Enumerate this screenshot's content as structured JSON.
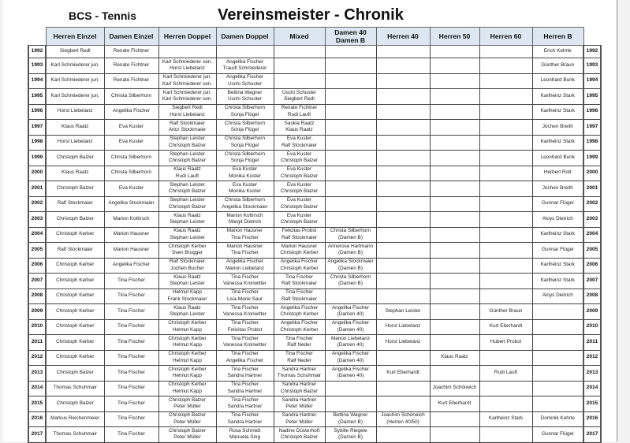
{
  "header": {
    "club": "BCS - Tennis",
    "title": "Vereinsmeister - Chronik"
  },
  "columns": [
    "Herren Einzel",
    "Damen Einzel",
    "Herren Doppel",
    "Damen Doppel",
    "Mixed",
    [
      "Damen 40",
      "Damen B"
    ],
    "Herren 40",
    "Herren 50",
    "Herren 60",
    "Herren B"
  ],
  "rows": [
    {
      "year": "1992",
      "cells": [
        [
          "Siegbert Redl"
        ],
        [
          "Renate Fichtner"
        ],
        [],
        [],
        [],
        [],
        [],
        [],
        [],
        [
          "Erich Kehrle"
        ]
      ]
    },
    {
      "year": "1993",
      "cells": [
        [
          "Karl Schmiederer jun."
        ],
        [
          "Renate Fichtner"
        ],
        [
          "Karl Schmiederer sen.",
          "Horst Liebetanz"
        ],
        [
          "Angelika Fischer",
          "Traudl Schmiederer"
        ],
        [],
        [],
        [],
        [],
        [],
        [
          "Günther Braun"
        ]
      ]
    },
    {
      "year": "1994",
      "cells": [
        [
          "Karl Schmiederer jun."
        ],
        [
          "Renate Fichtner"
        ],
        [
          "Karl Schmiederer jun.",
          "Karl Schmiederer sen."
        ],
        [
          "Angelika Fischer",
          "Uschi Schuster"
        ],
        [],
        [],
        [],
        [],
        [],
        [
          "Leonhard Bunk"
        ]
      ]
    },
    {
      "year": "1995",
      "cells": [
        [
          "Karl Schmiederer jun."
        ],
        [
          "Christa Silberhorn"
        ],
        [
          "Karl Schmiederer jun.",
          "Karl Schmiederer sen."
        ],
        [
          "Bettina Wagner",
          "Uschi Schuster"
        ],
        [
          "Uschi Schuster",
          "Siegbert Redl"
        ],
        [],
        [],
        [],
        [],
        [
          "Karlheinz Stark"
        ]
      ]
    },
    {
      "year": "1996",
      "cells": [
        [
          "Horst Liebetanz"
        ],
        [
          "Angelika Fischer"
        ],
        [
          "Siegbert Redl",
          "Horst Liebetanz"
        ],
        [
          "Christa Silberhorn",
          "Sonja Flügel"
        ],
        [
          "Renate Fichtner",
          "Rudi Lauft"
        ],
        [],
        [],
        [],
        [],
        [
          "Karlheinz Stark"
        ]
      ]
    },
    {
      "year": "1997",
      "cells": [
        [
          "Klaus Raatz"
        ],
        [
          "Eva Kuster"
        ],
        [
          "Ralf Stockmaier",
          "Artur Stockmaier"
        ],
        [
          "Christa Silberhorn",
          "Sonja Flügel"
        ],
        [
          "Saskia Raatz",
          "Klaus Raatz"
        ],
        [],
        [],
        [],
        [],
        [
          "Jochen Breith"
        ]
      ]
    },
    {
      "year": "1998",
      "cells": [
        [
          "Horst Liebetanz"
        ],
        [
          "Eva Kuster"
        ],
        [
          "Stephan Leister",
          "Christoph Balzer"
        ],
        [
          "Christa Silberhorn",
          "Sonja Flügel"
        ],
        [
          "Eva Kuster",
          "Ralf Stockmaier"
        ],
        [],
        [],
        [],
        [],
        [
          "Karlheinz Stark"
        ]
      ]
    },
    {
      "year": "1999",
      "cells": [
        [
          "Christoph Balzer"
        ],
        [
          "Christa Silberhorn"
        ],
        [
          "Stephan Leister",
          "Christoph Balzer"
        ],
        [
          "Christa Silberhorn",
          "Sonja Flügel"
        ],
        [
          "Eva Kuster",
          "Christoph Balzer"
        ],
        [],
        [],
        [],
        [],
        [
          "Leonhard Bunk"
        ]
      ]
    },
    {
      "year": "2000",
      "cells": [
        [
          "Klaus Raatz"
        ],
        [
          "Christa Silberhorn"
        ],
        [
          "Klaus Raatz",
          "Rudi Lauft"
        ],
        [
          "Eva Kuster",
          "Monika Kuster"
        ],
        [
          "Eva Kuster",
          "Christoph Balzer"
        ],
        [],
        [],
        [],
        [],
        [
          "Herbert Rott"
        ]
      ]
    },
    {
      "year": "2001",
      "cells": [
        [
          "Christoph Balzer"
        ],
        [
          "Eva Kuster"
        ],
        [
          "Stephan Leister",
          "Christoph Balzer"
        ],
        [
          "Eva Kuster",
          "Monika Kuster"
        ],
        [
          "Eva Kuster",
          "Christoph Balzer"
        ],
        [],
        [],
        [],
        [],
        [
          "Jochen Breith"
        ]
      ]
    },
    {
      "year": "2002",
      "cells": [
        [
          "Ralf Stockmaier"
        ],
        [
          "Angelika Stockmaier"
        ],
        [
          "Stephan Leister",
          "Christoph Balzer"
        ],
        [
          "Christa Silberhorn",
          "Angelika Stockmaier"
        ],
        [
          "Eva Kuster",
          "Christoph Balzer"
        ],
        [],
        [],
        [],
        [],
        [
          "Gunnar Flügel"
        ]
      ]
    },
    {
      "year": "2003",
      "cells": [
        [
          "Christoph Balzer"
        ],
        [
          "Marion Kottirsch"
        ],
        [
          "Klaus Raatz",
          "Stephan Leister"
        ],
        [
          "Marion Kottirsch",
          "Margit Dietrich"
        ],
        [
          "Eva Kuster",
          "Christoph Balzer"
        ],
        [],
        [],
        [],
        [],
        [
          "Aloys Dietrich"
        ]
      ]
    },
    {
      "year": "2004",
      "cells": [
        [
          "Christoph Kerber"
        ],
        [
          "Marion Hausner"
        ],
        [
          "Klaus Raatz",
          "Stephan Leister"
        ],
        [
          "Marion Hausner",
          "Tina Fischer"
        ],
        [
          "Felicitas Probst",
          "Ralf Stockmaier"
        ],
        [
          "Christa Silberhorn",
          "(Damen B)"
        ],
        [],
        [],
        [],
        [
          "Karlheinz Stark"
        ]
      ]
    },
    {
      "year": "2005",
      "cells": [
        [
          "Ralf Stockmaier"
        ],
        [
          "Marion Hausner"
        ],
        [
          "Christoph Kerber",
          "Sven Brugger"
        ],
        [
          "Marion Hausner",
          "Tina Fischer"
        ],
        [
          "Marion Hausner",
          "Christoph Kerber"
        ],
        [
          "Annerose Hartmann",
          "(Damen B)"
        ],
        [],
        [],
        [],
        [
          "Gunnar Flügel"
        ]
      ]
    },
    {
      "year": "2006",
      "cells": [
        [
          "Christoph Kerber"
        ],
        [
          "Angelika Fischer"
        ],
        [
          "Ralf Stockmaier",
          "Jochen Bucher"
        ],
        [
          "Angelika Fischer",
          "Marion Liebetanz"
        ],
        [
          "Angelika Fischer",
          "Christoph Kerber"
        ],
        [
          "Angelika Stockmaier",
          "(Damen B)"
        ],
        [],
        [],
        [],
        [
          "Karlheinz Stark"
        ]
      ]
    },
    {
      "year": "2007",
      "cells": [
        [
          "Christoph Kerber"
        ],
        [
          "Tina Fischer"
        ],
        [
          "Klaus Raatz",
          "Stephan Leister"
        ],
        [
          "Tina Fischer",
          "Vanessa Kronwitter"
        ],
        [
          "Tina Fischer",
          "Ralf Stockmaier"
        ],
        [
          "Christa Silberhorn",
          "(Damen B)"
        ],
        [],
        [],
        [],
        [
          "Karlheinz Stark"
        ]
      ]
    },
    {
      "year": "2008",
      "cells": [
        [
          "Christoph Kerber"
        ],
        [
          "Tina Fischer"
        ],
        [
          "Helmut Kapp",
          "Frank Stockmaier"
        ],
        [
          "Tina Fischer",
          "Lisa-Marie Saur"
        ],
        [
          "Tina Fischer",
          "Ralf Stockmaier"
        ],
        [],
        [],
        [],
        [],
        [
          "Aloys Dietrich"
        ]
      ]
    },
    {
      "year": "2009",
      "cells": [
        [
          "Christoph Kerber"
        ],
        [
          "Tina Fischer"
        ],
        [
          "Klaus Raatz",
          "Stephan Leister"
        ],
        [
          "Tina Fischer",
          "Vanessa Kronwitter"
        ],
        [
          "Angelika Fischer",
          "Christoph Kerber"
        ],
        [
          "Angelika Fischer",
          "(Damen 40)"
        ],
        [
          "Stephan Leister"
        ],
        [],
        [
          "Günther Braun"
        ],
        []
      ]
    },
    {
      "year": "2010",
      "cells": [
        [
          "Christoph Kerber"
        ],
        [
          "Tina Fischer"
        ],
        [
          "Christoph Kerber",
          "Helmut Kapp"
        ],
        [
          "Tina Fischer",
          "Felicitas Probst"
        ],
        [
          "Angelika Fischer",
          "Christoph Kerber"
        ],
        [
          "Angelika Fischer",
          "(Damen 40)"
        ],
        [
          "Horst Liebetanz"
        ],
        [],
        [
          "Kurt Eberhardt"
        ],
        []
      ]
    },
    {
      "year": "2011",
      "cells": [
        [
          "Christoph Kerber"
        ],
        [
          "Tina Fischer"
        ],
        [
          "Christoph Kerber",
          "Helmut Kapp"
        ],
        [
          "Tina Fischer",
          "Vanessa Kronwitter"
        ],
        [
          "Tina Fischer",
          "Ralf Neder"
        ],
        [
          "Marion Liebetanz",
          "(Damen 40)"
        ],
        [
          "Horst Liebetanz"
        ],
        [],
        [
          "Hubert Probst"
        ],
        []
      ]
    },
    {
      "year": "2012",
      "cells": [
        [
          "Christoph Kerber"
        ],
        [
          "Tina Fischer"
        ],
        [
          "Christoph Kerber",
          "Helmut Kapp"
        ],
        [
          "Tina Fischer",
          "Angelika Fischer"
        ],
        [
          "Tina Fischer",
          "Ralf Neder"
        ],
        [
          "Angelika Fischer",
          "(Damen 40)"
        ],
        [],
        [
          "Klaus Raatz"
        ],
        [],
        []
      ]
    },
    {
      "year": "2013",
      "cells": [
        [
          "Christoph Balzer"
        ],
        [
          "Tina Fischer"
        ],
        [
          "Christoph Kerber",
          "Helmut Kapp"
        ],
        [
          "Tina Fischer",
          "Sandra Hartner"
        ],
        [
          "Sandra Hartner",
          "Thomas Schuhmair"
        ],
        [
          "Angelika Fischer",
          "(Damen 40)"
        ],
        [
          "Kurt Eberhardt"
        ],
        [],
        [
          "Rudi Lauft"
        ],
        []
      ]
    },
    {
      "year": "2014",
      "cells": [
        [
          "Thomas Schuhmair"
        ],
        [
          "Tina Fischer"
        ],
        [
          "Christoph Kerber",
          "Helmut Kapp"
        ],
        [
          "Tina Fischer",
          "Sandra Hartner"
        ],
        [
          "Sandra Hartner",
          "Christoph Balzer"
        ],
        [],
        [],
        [
          "Joachim Schöneich"
        ],
        [],
        []
      ]
    },
    {
      "year": "2015",
      "cells": [
        [
          "Christoph Balzer"
        ],
        [
          "Tina Fischer"
        ],
        [
          "Christoph Balzer",
          "Peter Müller"
        ],
        [
          "Tina Fischer",
          "Sandra Hartner"
        ],
        [
          "Sandra Hartner",
          "Peter Müller"
        ],
        [],
        [],
        [
          "Kurt Eberhardt"
        ],
        [],
        []
      ]
    },
    {
      "year": "2016",
      "cells": [
        [
          "Markus Reichenmeier"
        ],
        [
          "Tina Fischer"
        ],
        [
          "Christoph Balzer",
          "Peter Müller"
        ],
        [
          "Tina Fischer",
          "Sandra Hartner"
        ],
        [
          "Sandra Hartner",
          "Peter Müller"
        ],
        [
          "Bettina Wagner",
          "(Damen B)"
        ],
        [
          "Joachim Schöneich",
          "(Herren 40/50)"
        ],
        [],
        [
          "Karlheinz Stark"
        ],
        [
          "Dominik Kehrle"
        ]
      ]
    },
    {
      "year": "2017",
      "cells": [
        [
          "Thomas Schuhmair"
        ],
        [
          "Tina Fischer"
        ],
        [
          "Christoph Balzer",
          "Peter Müller"
        ],
        [
          "Rosa Schmidt",
          "Manuela Sing"
        ],
        [
          "Nadine Düsterhoft",
          "Christoph Balzer"
        ],
        [
          "Sybille Riegele",
          "(Damen B)"
        ],
        [],
        [],
        [],
        [
          "Gunnar Flügel"
        ]
      ]
    }
  ]
}
